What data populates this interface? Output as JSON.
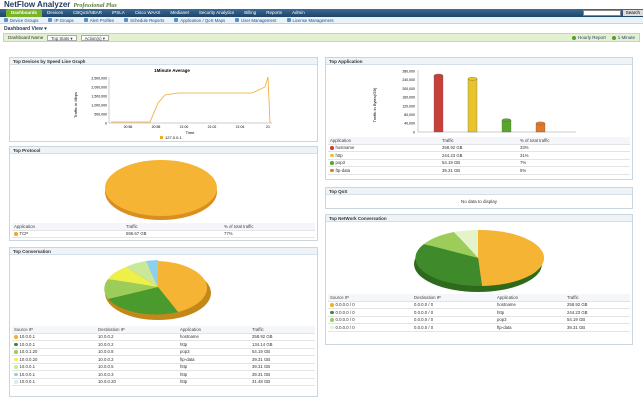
{
  "app": {
    "name": "NetFlow Analyzer",
    "edition": "Professional Plus"
  },
  "tabs": [
    "Dashboards",
    "Devices",
    "CBQoS/NBAR",
    "IPSLA",
    "Cisco WAAS",
    "Medianet",
    "Security Analytics",
    "Billing",
    "Reports",
    "Admin"
  ],
  "search": {
    "button": "Search"
  },
  "subnav": [
    "Device Groups",
    "IP Groups",
    "Alert Profiles",
    "Schedule Reports",
    "Application / QoS Maps",
    "User Management",
    "License Management"
  ],
  "dashboard": {
    "title": "Dashboard View ▾",
    "name_label": "Dashboard Name",
    "selected": "Top Stats",
    "action": "Action(s)",
    "report": "Hourly Report",
    "interval": "1 Minute"
  },
  "speed": {
    "title": "Top Devices by Speed Line Graph",
    "chart_title": "1Minute Average",
    "ylabel": "Traffic in Mbps",
    "xlabel": "Time",
    "yticks": [
      "2,500,000",
      "2,000,000",
      "1,500,000",
      "1,000,000",
      "500,000",
      "0"
    ],
    "xticks": [
      "20:56",
      "20:58",
      "21:00",
      "21:02",
      "21:04",
      "21"
    ],
    "legend": "127.0.0.1"
  },
  "app_panel": {
    "title": "Top Application",
    "ylabel": "Traffic in Bytes(GB)",
    "yticks": [
      "280,000",
      "240,000",
      "200,000",
      "160,000",
      "120,000",
      "80,000",
      "40,000",
      "0"
    ],
    "headers": [
      "Application",
      "Traffic",
      "% of total traffic"
    ],
    "rows": [
      {
        "app": "hostname",
        "traffic": "258.92 GB",
        "pct": "33%",
        "color": "#c8403a"
      },
      {
        "app": "http",
        "traffic": "244.23 GB",
        "pct": "31%",
        "color": "#e8c42c"
      },
      {
        "app": "pop3",
        "traffic": "54.19 GB",
        "pct": "7%",
        "color": "#5aa52d"
      },
      {
        "app": "ftp-data",
        "traffic": "39.31 GB",
        "pct": "5%",
        "color": "#e07a2a"
      }
    ]
  },
  "protocol": {
    "title": "Top Protocol",
    "headers": [
      "Application",
      "Traffic",
      "% of total traffic"
    ],
    "rows": [
      {
        "app": "TCP",
        "traffic": "596.67 GB",
        "pct": "77%",
        "color": "#f0a830"
      }
    ]
  },
  "qos": {
    "title": "Top QoS",
    "empty": "No data to display"
  },
  "conversation": {
    "title": "Top Conversation",
    "headers": [
      "Source IP",
      "Destination IP",
      "Application",
      "Traffic"
    ],
    "rows": [
      {
        "src": "10.0.0.1",
        "dst": "10.0.0.2",
        "app": "hostname",
        "traffic": "258.92 GB",
        "color": "#f0b030"
      },
      {
        "src": "10.0.0.1",
        "dst": "10.0.0.2",
        "app": "http",
        "traffic": "134.14 GB",
        "color": "#3f8a2a"
      },
      {
        "src": "10.0.1.20",
        "dst": "10.0.0.8",
        "app": "pop3",
        "traffic": "54.19 GB",
        "color": "#9ccc5a"
      },
      {
        "src": "10.0.0.20",
        "dst": "10.0.0.2",
        "app": "ftp-data",
        "traffic": "39.31 GB",
        "color": "#eef04a"
      },
      {
        "src": "10.0.0.1",
        "dst": "10.0.0.5",
        "app": "http",
        "traffic": "39.31 GB",
        "color": "#c9e89a"
      },
      {
        "src": "10.0.0.1",
        "dst": "10.0.0.3",
        "app": "http",
        "traffic": "39.31 GB",
        "color": "#8bd0ee"
      },
      {
        "src": "10.0.0.1",
        "dst": "10.0.0.20",
        "app": "http",
        "traffic": "31.48 GB",
        "color": "#d8ecf4"
      }
    ]
  },
  "network": {
    "title": "Top NetWork Conversation",
    "headers": [
      "Source IP",
      "Destination IP",
      "Application",
      "Traffic"
    ],
    "rows": [
      {
        "src": "0.0.0.0 / 0",
        "dst": "0.0.0.0 / 0",
        "app": "hostname",
        "traffic": "258.92 GB",
        "color": "#f0b030"
      },
      {
        "src": "0.0.0.0 / 0",
        "dst": "0.0.0.0 / 0",
        "app": "http",
        "traffic": "244.23 GB",
        "color": "#3f8a2a"
      },
      {
        "src": "0.0.0.0 / 0",
        "dst": "0.0.0.0 / 0",
        "app": "pop3",
        "traffic": "54.19 GB",
        "color": "#9ccc5a"
      },
      {
        "src": "0.0.0.0 / 0",
        "dst": "0.0.0.0 / 0",
        "app": "ftp-data",
        "traffic": "39.31 GB",
        "color": "#e4f4c8"
      }
    ]
  }
}
